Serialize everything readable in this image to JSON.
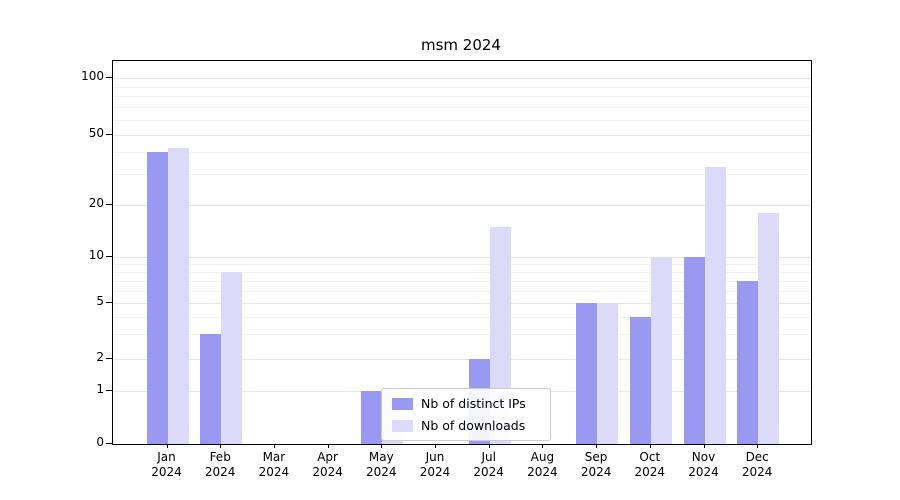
{
  "title": "msm 2024",
  "legend": {
    "items": [
      {
        "label": "Nb of distinct IPs",
        "color": "#9a99f2"
      },
      {
        "label": "Nb of downloads",
        "color": "#dbdaf9"
      }
    ]
  },
  "chart_data": {
    "type": "bar",
    "title": "msm 2024",
    "categories": [
      "Jan 2024",
      "Feb 2024",
      "Mar 2024",
      "Apr 2024",
      "May 2024",
      "Jun 2024",
      "Jul 2024",
      "Aug 2024",
      "Sep 2024",
      "Oct 2024",
      "Nov 2024",
      "Dec 2024"
    ],
    "series": [
      {
        "name": "Nb of distinct IPs",
        "color": "#9a99f2",
        "values": [
          40,
          3,
          0,
          0,
          1,
          0,
          2,
          0,
          5,
          4,
          10,
          7
        ]
      },
      {
        "name": "Nb of downloads",
        "color": "#dbdaf9",
        "values": [
          42,
          8,
          0,
          0,
          1,
          0,
          15,
          0,
          5,
          10,
          33,
          18
        ]
      }
    ],
    "yscale": "symlog",
    "yticks": [
      0,
      1,
      2,
      5,
      10,
      20,
      50,
      100
    ],
    "minor_yticks": [
      3,
      4,
      6,
      7,
      8,
      9,
      30,
      40,
      60,
      70,
      80,
      90
    ],
    "ylim": [
      0,
      125
    ],
    "grid": true,
    "legend_position": "lower center"
  }
}
